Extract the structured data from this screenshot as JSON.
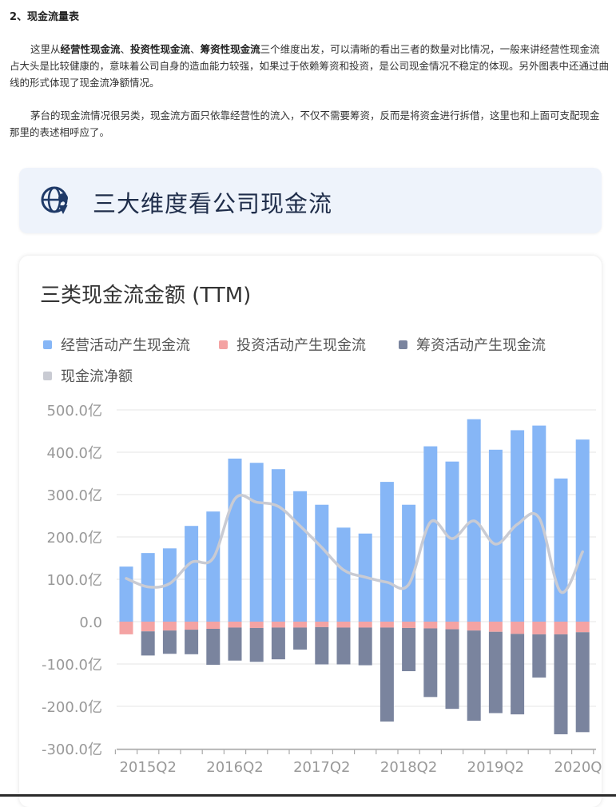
{
  "article": {
    "section_title": "2、现金流量表",
    "para1": {
      "lead": "这里从",
      "b1": "经营性现金流",
      "sep1": "、",
      "b2": "投资性现金流",
      "sep2": "、",
      "b3": "筹资性现金流",
      "rest": "三个维度出发，可以清晰的看出三者的数量对比情况，一般来讲经营性现金流占大头是比较健康的，意味着公司自身的造血能力较强，如果过于依赖筹资和投资，是公司现金情况不稳定的体现。另外图表中还通过曲线的形式体现了现金流净额情况。"
    },
    "para2": "茅台的现金流情况很另类，现金流方面只依靠经营性的流入，不仅不需要筹资，反而是将资金进行拆借，这里也和上面可支配现金那里的表述相呼应了。"
  },
  "banner": {
    "title": "三大维度看公司现金流",
    "icon": "globe-location-icon"
  },
  "colors": {
    "operating": "#86b6f6",
    "investing": "#f4a3a3",
    "financing": "#7a849e",
    "net": "#c9cbd3",
    "grid": "#e6e6e6",
    "axis": "#aaaaaa",
    "tick_text": "#999999",
    "title_text": "#333333",
    "legend_text": "#555555"
  },
  "chart_data": {
    "type": "bar",
    "title": "三类现金流金额 (TTM)",
    "y_tick_labels": [
      "500.0亿",
      "400.0亿",
      "300.0亿",
      "200.0亿",
      "100.0亿",
      "0.0",
      "-100.0亿",
      "-200.0亿",
      "-300.0亿"
    ],
    "y_ticks": [
      500,
      400,
      300,
      200,
      100,
      0,
      -100,
      -200,
      -300
    ],
    "ylim": [
      -300,
      500
    ],
    "x_tick_labels": [
      "2015Q2",
      "2016Q2",
      "2017Q2",
      "2018Q2",
      "2019Q2",
      "2020Q2"
    ],
    "x_tick_positions": [
      1,
      5,
      9,
      13,
      17,
      21
    ],
    "periods": 22,
    "legend": [
      "经营活动产生现金流",
      "投资活动产生现金流",
      "筹资活动产生现金流",
      "现金流净额"
    ],
    "series": [
      {
        "name": "经营活动产生现金流",
        "key": "operating",
        "values": [
          130,
          162,
          173,
          226,
          260,
          385,
          375,
          360,
          308,
          276,
          222,
          208,
          330,
          276,
          414,
          378,
          478,
          406,
          452,
          463,
          338,
          430
        ]
      },
      {
        "name": "投资活动产生现金流",
        "key": "investing",
        "values": [
          -30,
          -23,
          -21,
          -19,
          -17,
          -14,
          -15,
          -14,
          -14,
          -13,
          -14,
          -14,
          -14,
          -15,
          -16,
          -18,
          -21,
          -24,
          -29,
          -30,
          -30,
          -25
        ]
      },
      {
        "name": "筹资活动产生现金流",
        "key": "financing",
        "values": [
          0,
          -57,
          -55,
          -58,
          -85,
          -78,
          -80,
          -75,
          -52,
          -88,
          -87,
          -89,
          -222,
          -102,
          -162,
          -188,
          -213,
          -192,
          -190,
          -102,
          -236,
          -236
        ]
      },
      {
        "name": "现金流净额",
        "key": "net",
        "values": [
          102,
          82,
          90,
          140,
          150,
          290,
          282,
          272,
          226,
          175,
          122,
          105,
          93,
          88,
          235,
          196,
          238,
          183,
          230,
          245,
          70,
          165
        ]
      }
    ]
  }
}
